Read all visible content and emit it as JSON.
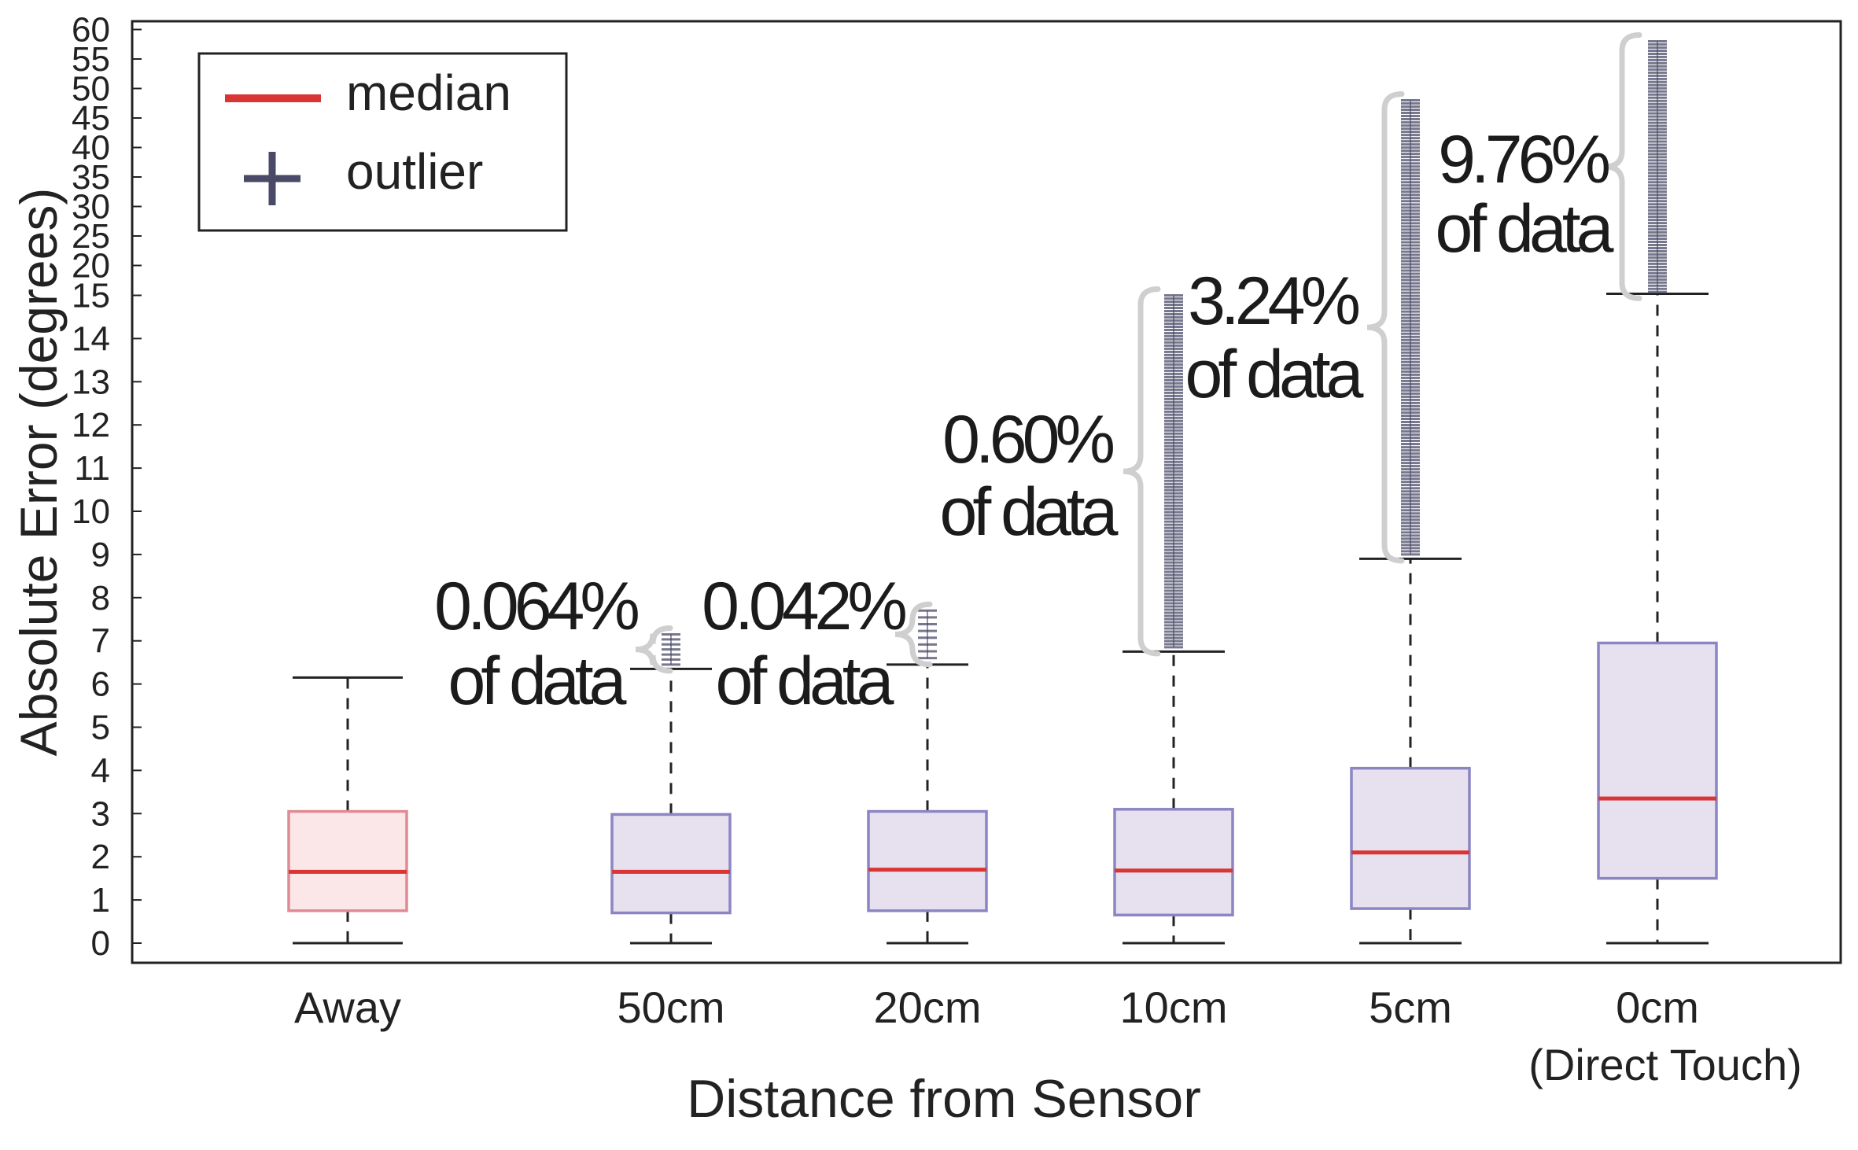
{
  "chart_data": {
    "type": "box",
    "xlabel": "Distance from Sensor",
    "ylabel": "Absolute Error (degrees)",
    "y_scale": "piecewise: linear 0–15, compressed 15–60",
    "y_ticks": [
      0,
      1,
      2,
      3,
      4,
      5,
      6,
      7,
      8,
      9,
      10,
      11,
      12,
      13,
      14,
      15,
      20,
      25,
      30,
      35,
      40,
      45,
      50,
      55,
      60
    ],
    "legend": {
      "placement": "top-left",
      "items": [
        {
          "label": "median",
          "color": "#d93535",
          "marker": "line"
        },
        {
          "label": "outlier",
          "color": "#4a4a68",
          "marker": "plus"
        }
      ]
    },
    "categories": [
      {
        "label": "Away",
        "sublabel": "",
        "whisker_low": 0,
        "q1": 0.75,
        "median": 1.65,
        "q3": 3.05,
        "whisker_high": 6.15,
        "outliers_from": null,
        "outliers_to": null,
        "outlier_pct": "",
        "box_fill": "#fbe6e8",
        "box_stroke": "#e08a94"
      },
      {
        "label": "50cm",
        "sublabel": "",
        "whisker_low": 0,
        "q1": 0.7,
        "median": 1.65,
        "q3": 2.98,
        "whisker_high": 6.35,
        "outliers_from": 6.45,
        "outliers_to": 7.15,
        "outlier_pct": "0.064%",
        "box_fill": "#e6e0ef",
        "box_stroke": "#8a86c4"
      },
      {
        "label": "20cm",
        "sublabel": "",
        "whisker_low": 0,
        "q1": 0.75,
        "median": 1.7,
        "q3": 3.05,
        "whisker_high": 6.45,
        "outliers_from": 6.6,
        "outliers_to": 7.7,
        "outlier_pct": "0.042%",
        "box_fill": "#e6e0ef",
        "box_stroke": "#8a86c4"
      },
      {
        "label": "10cm",
        "sublabel": "",
        "whisker_low": 0,
        "q1": 0.65,
        "median": 1.68,
        "q3": 3.1,
        "whisker_high": 6.75,
        "outliers_from": 6.85,
        "outliers_to": 15.0,
        "outlier_pct": "0.60%",
        "box_fill": "#e6e0ef",
        "box_stroke": "#8a86c4"
      },
      {
        "label": "5cm",
        "sublabel": "",
        "whisker_low": 0,
        "q1": 0.8,
        "median": 2.1,
        "q3": 4.05,
        "whisker_high": 8.9,
        "outliers_from": 9.0,
        "outliers_to": 48,
        "outlier_pct": "3.24%",
        "box_fill": "#e6e0ef",
        "box_stroke": "#8a86c4"
      },
      {
        "label": "0cm",
        "sublabel": "(Direct Touch)",
        "whisker_low": 0,
        "q1": 1.5,
        "median": 3.35,
        "q3": 6.95,
        "whisker_high": 15.2,
        "outliers_from": 15.5,
        "outliers_to": 58,
        "outlier_pct": "9.76%",
        "box_fill": "#e6e0ef",
        "box_stroke": "#8a86c4"
      }
    ],
    "annotation_suffix": "of data",
    "grid": false
  }
}
